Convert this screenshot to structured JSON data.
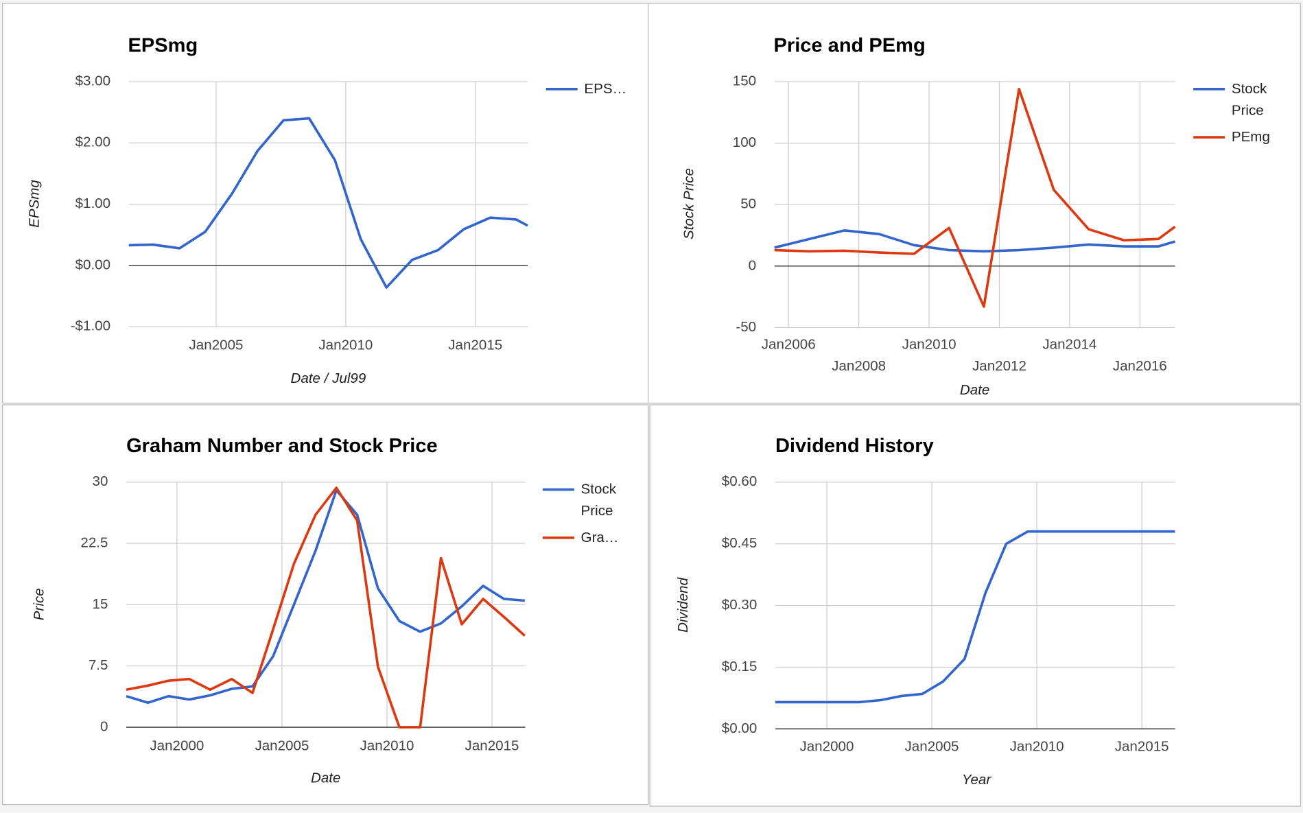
{
  "chart_data": [
    {
      "type": "line",
      "title": "EPSmg",
      "x_label": "Date / Jul99",
      "y_label": "EPSmg",
      "x": [
        2001.63,
        2002.56,
        2003.59,
        2004.58,
        2005.61,
        2006.6,
        2007.6,
        2008.59,
        2009.58,
        2010.58,
        2011.57,
        2012.56,
        2013.56,
        2014.55,
        2015.58,
        2016.57,
        2017.02
      ],
      "series": [
        {
          "name": "EPS…",
          "color": "#3366cc",
          "values": [
            0.33,
            0.34,
            0.28,
            0.55,
            1.17,
            1.87,
            2.37,
            2.4,
            1.72,
            0.43,
            -0.36,
            0.09,
            0.25,
            0.59,
            0.78,
            0.75,
            0.65
          ]
        }
      ],
      "xlim": [
        2001.63,
        2017.02
      ],
      "ylim": [
        -1,
        3
      ],
      "xticks": [
        {
          "value": 2005,
          "label": "Jan2005"
        },
        {
          "value": 2010,
          "label": "Jan2010"
        },
        {
          "value": 2015,
          "label": "Jan2015"
        }
      ],
      "yticks": [
        {
          "value": -1,
          "label": "-$1.00"
        },
        {
          "value": 0,
          "label": "$0.00"
        },
        {
          "value": 1,
          "label": "$1.00"
        },
        {
          "value": 2,
          "label": "$2.00"
        },
        {
          "value": 3,
          "label": "$3.00"
        }
      ],
      "grid": true,
      "legend": "right"
    },
    {
      "type": "line",
      "title": "Price and PEmg",
      "x_label": "Date",
      "y_label": "Stock Price",
      "x": [
        2005.6,
        2006.59,
        2007.59,
        2008.58,
        2009.57,
        2010.57,
        2011.56,
        2012.56,
        2013.55,
        2014.54,
        2015.54,
        2016.53,
        2017.0
      ],
      "series": [
        {
          "name": "Stock Price",
          "color": "#3366cc",
          "values": [
            15,
            22,
            29,
            26,
            17,
            13,
            12,
            13,
            15,
            17.5,
            16,
            16,
            20
          ]
        },
        {
          "name": "PEmg",
          "color": "#dc3912",
          "values": [
            13,
            12,
            12.5,
            11,
            10,
            31,
            -33,
            144,
            62,
            30,
            21,
            22,
            32
          ]
        }
      ],
      "xlim": [
        2005.6,
        2017.0
      ],
      "ylim": [
        -50,
        150
      ],
      "xticks": [
        {
          "value": 2006,
          "label": "Jan2006"
        },
        {
          "value": 2008,
          "label": "Jan2008"
        },
        {
          "value": 2010,
          "label": "Jan2010"
        },
        {
          "value": 2012,
          "label": "Jan2012"
        },
        {
          "value": 2014,
          "label": "Jan2014"
        },
        {
          "value": 2016,
          "label": "Jan2016"
        }
      ],
      "yticks": [
        -50,
        0,
        50,
        100,
        150
      ],
      "grid": true,
      "legend": "right"
    },
    {
      "type": "line",
      "title": "Graham Number and Stock Price",
      "x_label": "Date",
      "y_label": "Price",
      "x": [
        1997.59,
        1998.62,
        1999.6,
        2000.59,
        2001.58,
        2002.61,
        2003.6,
        2004.58,
        2005.57,
        2006.6,
        2007.59,
        2008.58,
        2009.57,
        2010.59,
        2011.58,
        2012.57,
        2013.56,
        2014.58,
        2015.57,
        2016.56
      ],
      "series": [
        {
          "name": "Stock Price",
          "color": "#3366cc",
          "values": [
            3.8,
            3.0,
            3.8,
            3.4,
            3.9,
            4.7,
            5.0,
            8.7,
            15,
            21.6,
            29,
            26,
            17,
            13,
            11.7,
            12.7,
            14.8,
            17.3,
            15.7,
            15.5
          ]
        },
        {
          "name": "Gra…",
          "color": "#dc3912",
          "values": [
            4.6,
            5.1,
            5.7,
            5.9,
            4.6,
            5.9,
            4.2,
            12,
            20,
            26,
            29.3,
            25.3,
            7.4,
            0,
            0,
            20.7,
            12.6,
            15.7,
            13.5,
            11.2
          ]
        }
      ],
      "xlim": [
        1997.59,
        2016.58
      ],
      "ylim": [
        0,
        30
      ],
      "xticks": [
        {
          "value": 2000,
          "label": "Jan2000"
        },
        {
          "value": 2005,
          "label": "Jan2005"
        },
        {
          "value": 2010,
          "label": "Jan2010"
        },
        {
          "value": 2015,
          "label": "Jan2015"
        }
      ],
      "yticks": [
        0,
        7.5,
        15,
        22.5,
        30
      ],
      "grid": true,
      "legend": "right"
    },
    {
      "type": "line",
      "title": "Dividend History",
      "x_label": "Year",
      "y_label": "Dividend",
      "x": [
        1997.55,
        1998.54,
        1999.57,
        2000.55,
        2001.54,
        2002.57,
        2003.56,
        2004.55,
        2005.53,
        2006.56,
        2007.55,
        2008.54,
        2009.57,
        2010.55,
        2011.54,
        2012.57,
        2013.56,
        2014.55,
        2015.53,
        2016.58
      ],
      "series": [
        {
          "color": "#3366cc",
          "values": [
            0.065,
            0.065,
            0.065,
            0.065,
            0.065,
            0.07,
            0.08,
            0.085,
            0.115,
            0.17,
            0.33,
            0.45,
            0.48,
            0.48,
            0.48,
            0.48,
            0.48,
            0.48,
            0.48,
            0.48
          ]
        }
      ],
      "xlim": [
        1997.55,
        2016.58
      ],
      "ylim": [
        0,
        0.6
      ],
      "xticks": [
        {
          "value": 2000,
          "label": "Jan2000"
        },
        {
          "value": 2005,
          "label": "Jan2005"
        },
        {
          "value": 2010,
          "label": "Jan2010"
        },
        {
          "value": 2015,
          "label": "Jan2015"
        }
      ],
      "yticks": [
        {
          "value": 0,
          "label": "$0.00"
        },
        {
          "value": 0.15,
          "label": "$0.15"
        },
        {
          "value": 0.3,
          "label": "$0.30"
        },
        {
          "value": 0.45,
          "label": "$0.45"
        },
        {
          "value": 0.6,
          "label": "$0.60"
        }
      ],
      "grid": true
    }
  ]
}
